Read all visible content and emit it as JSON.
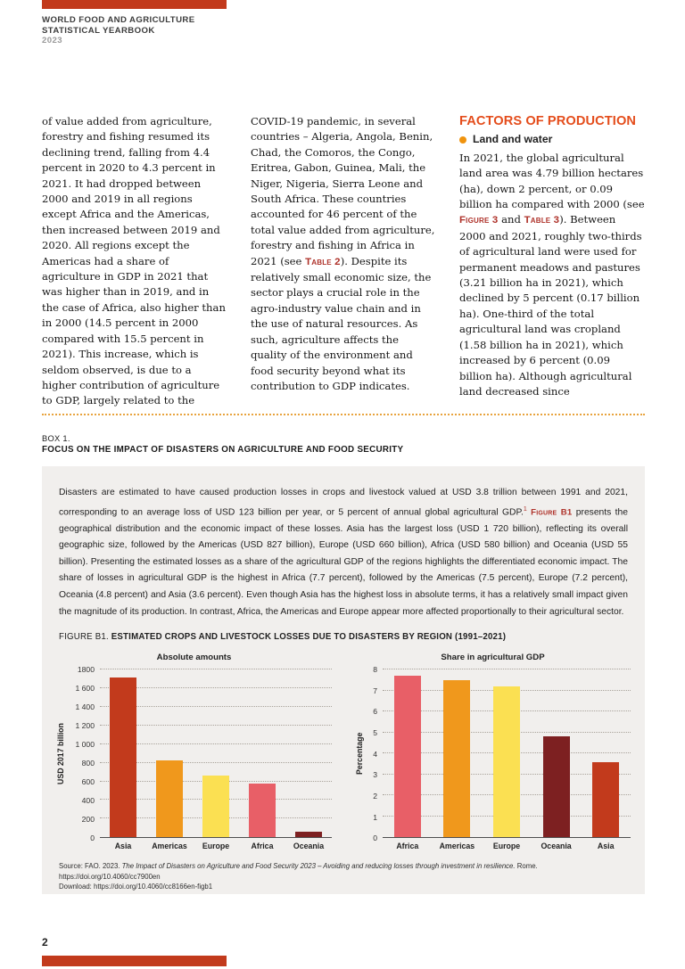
{
  "header": {
    "title_line1": "WORLD FOOD AND AGRICULTURE",
    "title_line2": "STATISTICAL YEARBOOK",
    "year": "2023"
  },
  "article": {
    "col1": "of value added from agriculture, forestry and fishing resumed its declining trend, falling from 4.4 percent in 2020 to 4.3 percent in 2021. It had dropped between 2000 and 2019 in all regions except Africa and the Americas, then increased between 2019 and 2020. All regions except the Americas had a share of agriculture in GDP in 2021 that was higher than in 2019, and in the case of Africa, also higher than in 2000 (14.5 percent in 2000 compared with 15.5 percent in 2021). This increase, which is seldom observed, is due to a higher contribution of agriculture to GDP, largely related to the",
    "col2_part1": "COVID-19 pandemic, in several countries – Algeria, Angola, Benin, Chad, the Comoros, the Congo, Eritrea, Gabon, Guinea, Mali, the Niger, Nigeria, Sierra Leone and South Africa. These countries accounted for 46 percent of the total value added from agriculture, forestry and fishing in Africa in 2021 (see ",
    "col2_ref_table2": "Table 2",
    "col2_part2": "). Despite its relatively small economic size, the sector plays a crucial role in the agro-industry value chain and in the use of natural resources. As such, agriculture affects the quality of the environment and food security beyond what its contribution to GDP indicates.",
    "col3_heading": "FACTORS OF PRODUCTION",
    "col3_subheading": "Land and water",
    "col3_part1": "In 2021, the global agricultural land area was 4.79 billion hectares (ha), down 2 percent, or 0.09 billion ha compared with 2000 (see ",
    "col3_ref_figure3": "Figure 3",
    "col3_and": " and ",
    "col3_ref_table3": "Table 3",
    "col3_part2": "). Between 2000 and 2021, roughly two-thirds of agricultural land were used for permanent meadows and pastures (3.21 billion ha in 2021), which declined by 5 percent (0.17 billion ha). One-third of the total agricultural land was cropland (1.58 billion ha in 2021), which increased by 6 percent (0.09 billion ha). Although agricultural land decreased since"
  },
  "box": {
    "label": "BOX 1.",
    "title": "FOCUS ON THE IMPACT OF DISASTERS ON AGRICULTURE AND FOOD SECURITY",
    "para_part1": "Disasters are estimated to have caused production losses in crops and livestock valued at USD 3.8 trillion between 1991 and 2021, corresponding to an average loss of USD 123 billion per year, or 5 percent of annual global agricultural GDP.",
    "footnote_marker": "1",
    "para_ref_figureb1": "Figure B1",
    "para_part2": " presents the geographical distribution and the economic impact of these losses. Asia has the largest loss (USD 1 720 billion), reflecting its overall geographic size, followed by the Americas (USD 827 billion), Europe (USD 660 billion), Africa (USD 580 billion) and Oceania (USD 55 billion). Presenting the estimated losses as a share of the agricultural GDP of the regions highlights the differentiated economic impact. The share of losses in agricultural GDP is the highest in Africa (7.7 percent), followed by the Americas (7.5 percent), Europe (7.2 percent), Oceania (4.8 percent) and Asia (3.6 percent). Even though Asia has the highest loss in absolute terms, it has a relatively small impact given the magnitude of its production. In contrast, Africa, the Americas and Europe appear more affected proportionally to their agricultural sector.",
    "figure_label": "FIGURE B1. ",
    "figure_title": "ESTIMATED CROPS AND LIVESTOCK LOSSES DUE TO DISASTERS BY REGION (1991–2021)",
    "source_prefix": "Source: FAO. 2023. ",
    "source_italic": "The Impact of Disasters on Agriculture and Food Security 2023 – Avoiding and reducing losses through investment in resilience.",
    "source_suffix": " Rome.",
    "source_link1": "https://doi.org/10.4060/cc7900en",
    "source_download_label": "Download: ",
    "source_link2": "https://doi.org/10.4060/cc8166en-figb1"
  },
  "chart_data": [
    {
      "type": "bar",
      "title": "Absolute amounts",
      "ylabel": "USD 2017 billion",
      "categories": [
        "Asia",
        "Americas",
        "Europe",
        "Africa",
        "Oceania"
      ],
      "values": [
        1720,
        827,
        660,
        580,
        55
      ],
      "bar_colors": [
        "#c23a1c",
        "#f0981c",
        "#fbe052",
        "#e85f67",
        "#7d2021"
      ],
      "ylim": [
        0,
        1800
      ],
      "ytick_labels": [
        "0",
        "200",
        "400",
        "600",
        "800",
        "1 000",
        "1 200",
        "1 400",
        "1 600",
        "1800"
      ],
      "grid": "dotted horizontal"
    },
    {
      "type": "bar",
      "title": "Share in agricultural GDP",
      "ylabel": "Percentage",
      "categories": [
        "Africa",
        "Americas",
        "Europe",
        "Oceania",
        "Asia"
      ],
      "values": [
        7.7,
        7.5,
        7.2,
        4.8,
        3.6
      ],
      "bar_colors": [
        "#e85f67",
        "#f0981c",
        "#fbe052",
        "#7d2021",
        "#c23a1c"
      ],
      "ylim": [
        0,
        8
      ],
      "ytick_labels": [
        "0",
        "1",
        "2",
        "3",
        "4",
        "5",
        "6",
        "7",
        "8"
      ],
      "grid": "dotted horizontal"
    }
  ],
  "footer": {
    "page_number": "2"
  },
  "colors": {
    "brand_red": "#c23a1c",
    "section_heading": "#e44d1c",
    "bullet_orange": "#f0930d",
    "reference_red": "#ae3129",
    "divider_orange": "#e8a33d",
    "box_background": "#f1efed"
  }
}
